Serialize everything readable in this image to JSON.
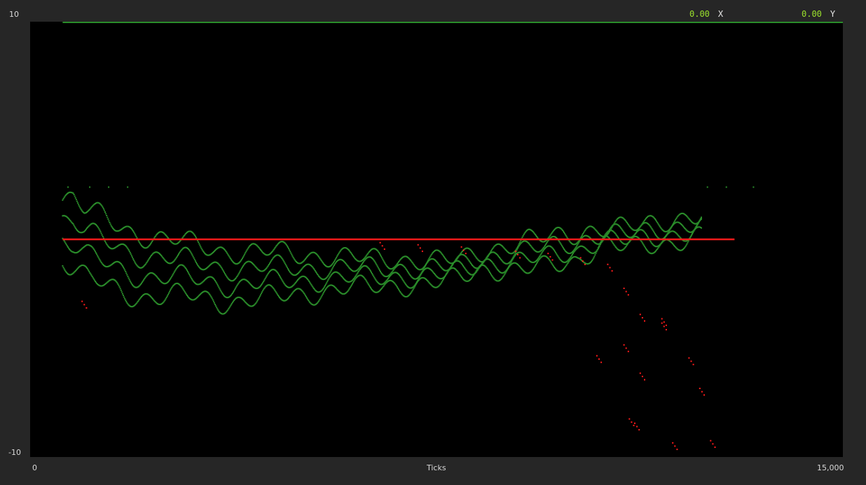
{
  "axes": {
    "y_max_label": "10",
    "y_min_label": "-10",
    "x_min_label": "0",
    "x_max_label": "15,000",
    "x_title": "Ticks"
  },
  "readouts": {
    "x_value": "0.00",
    "x_label": "X",
    "y_value": "0.00",
    "y_label": "Y"
  },
  "colors": {
    "background": "#262626",
    "plot_background": "#000000",
    "series_x": "#2a8c2a",
    "series_y": "#ff1a1a",
    "readout_value": "#9be22d"
  },
  "chart_data": {
    "type": "scatter",
    "xlim": [
      0,
      15000
    ],
    "ylim": [
      -10,
      10
    ],
    "grid": false,
    "legend": "none",
    "x_axis_title": "Ticks",
    "series": [
      {
        "name": "X",
        "color": "#2a8c2a",
        "upper_band": [
          [
            550,
            2.4
          ],
          [
            800,
            2.5
          ],
          [
            1000,
            1.8
          ],
          [
            1200,
            1.5
          ],
          [
            1500,
            1.2
          ],
          [
            1800,
            1.0
          ],
          [
            2100,
            0.8
          ],
          [
            2500,
            0.4
          ],
          [
            3000,
            0.1
          ],
          [
            4000,
            -0.2
          ],
          [
            5000,
            -0.4
          ],
          [
            6000,
            -0.6
          ],
          [
            7000,
            -0.8
          ],
          [
            8000,
            -0.7
          ],
          [
            8600,
            -0.3
          ],
          [
            9200,
            0.2
          ],
          [
            9800,
            0.4
          ],
          [
            10600,
            0.6
          ],
          [
            11400,
            0.9
          ],
          [
            12300,
            1.2
          ],
          [
            13000,
            1.6
          ],
          [
            13300,
            2.0
          ],
          [
            13700,
            2.3
          ]
        ],
        "lower_band": [
          [
            550,
            -1.2
          ],
          [
            1100,
            -2.6
          ],
          [
            1700,
            -2.9
          ],
          [
            2300,
            -3.0
          ],
          [
            2900,
            -3.1
          ],
          [
            3500,
            -3.2
          ],
          [
            4100,
            -3.1
          ],
          [
            4700,
            -3.0
          ],
          [
            5300,
            -2.7
          ],
          [
            5900,
            -2.4
          ],
          [
            6500,
            -2.4
          ],
          [
            7100,
            -2.3
          ],
          [
            7700,
            -2.0
          ],
          [
            8300,
            -1.6
          ],
          [
            8900,
            -1.6
          ],
          [
            9500,
            -1.5
          ],
          [
            10100,
            -1.2
          ],
          [
            10600,
            -0.3
          ],
          [
            11200,
            -0.5
          ],
          [
            11800,
            -0.4
          ],
          [
            12400,
            0.1
          ]
        ]
      },
      {
        "name": "Y",
        "color": "#ff1a1a",
        "baseline_value": 0.0,
        "baseline_range": [
          600,
          13000
        ],
        "deviation_points": [
          [
            1000,
            -3.0
          ],
          [
            6500,
            -0.3
          ],
          [
            7200,
            -0.4
          ],
          [
            8000,
            -0.5
          ],
          [
            9000,
            -0.7
          ],
          [
            9600,
            -0.8
          ],
          [
            10200,
            -1.0
          ],
          [
            10700,
            -1.3
          ],
          [
            11000,
            -2.4
          ],
          [
            11300,
            -3.6
          ],
          [
            11700,
            -3.8
          ],
          [
            10500,
            -5.5
          ],
          [
            11000,
            -5.0
          ],
          [
            11300,
            -6.3
          ],
          [
            11700,
            -4.0
          ],
          [
            12200,
            -5.6
          ],
          [
            12400,
            -7.0
          ],
          [
            11100,
            -8.4
          ],
          [
            11200,
            -8.6
          ],
          [
            11900,
            -9.5
          ],
          [
            12600,
            -9.4
          ]
        ]
      }
    ]
  }
}
